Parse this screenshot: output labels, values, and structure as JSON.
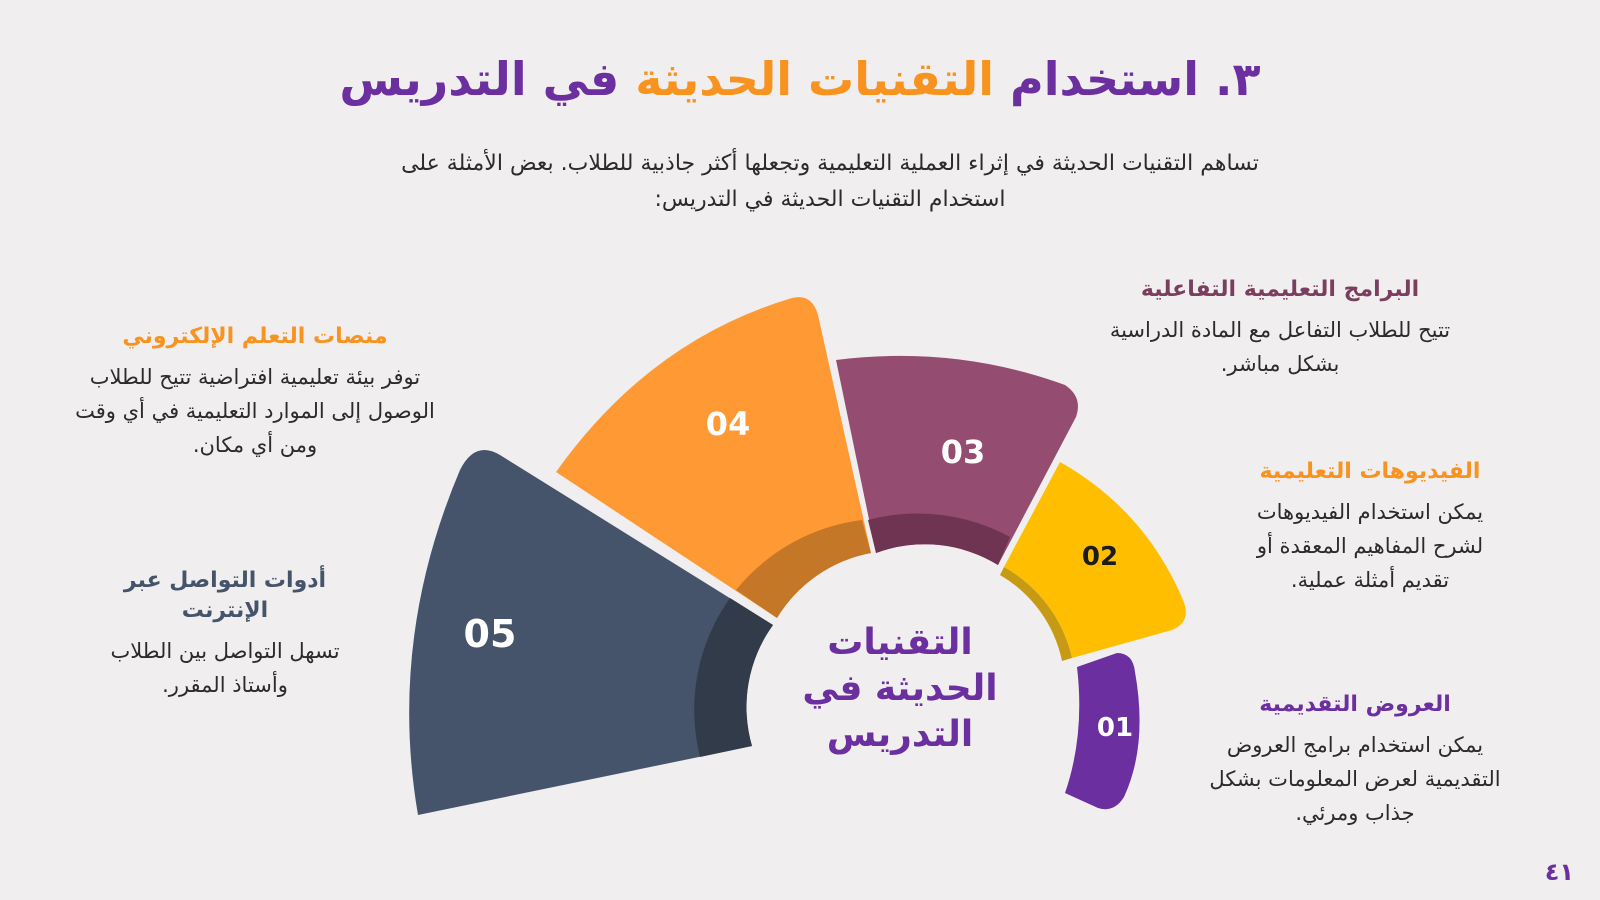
{
  "title": {
    "prefix": "٣. استخدام",
    "highlight": "التقنيات الحديثة",
    "suffix": "في التدريس"
  },
  "intro": "تساهم التقنيات الحديثة في إثراء العملية التعليمية وتجعلها أكثر جاذبية للطلاب. بعض الأمثلة على استخدام التقنيات الحديثة في التدريس:",
  "center_label": [
    "التقنيات",
    "الحديثة في",
    "التدريس"
  ],
  "segments": [
    {
      "num": "01",
      "heading": "العروض التقديمية",
      "text": "يمكن استخدام برامج العروض التقديمية لعرض المعلومات بشكل جذاب ومرئي.",
      "color": "#6b2fa0"
    },
    {
      "num": "02",
      "heading": "الفيديوهات التعليمية",
      "text": "يمكن استخدام الفيديوهات لشرح المفاهيم المعقدة أو تقديم أمثلة عملية.",
      "color": "#ffbf00"
    },
    {
      "num": "03",
      "heading": "البرامج التعليمية التفاعلية",
      "text": "تتيح للطلاب التفاعل مع المادة الدراسية بشكل مباشر.",
      "color": "#944d70"
    },
    {
      "num": "04",
      "heading": "منصات التعلم الإلكتروني",
      "text": "توفر بيئة تعليمية افتراضية تتيح للطلاب الوصول إلى الموارد التعليمية في أي وقت ومن أي مكان.",
      "color": "#ff9933"
    },
    {
      "num": "05",
      "heading": "أدوات التواصل عبر الإنترنت",
      "text": "تسهل التواصل بين الطلاب وأستاذ المقرر.",
      "color": "#45546a"
    }
  ],
  "page_number": "٤١"
}
